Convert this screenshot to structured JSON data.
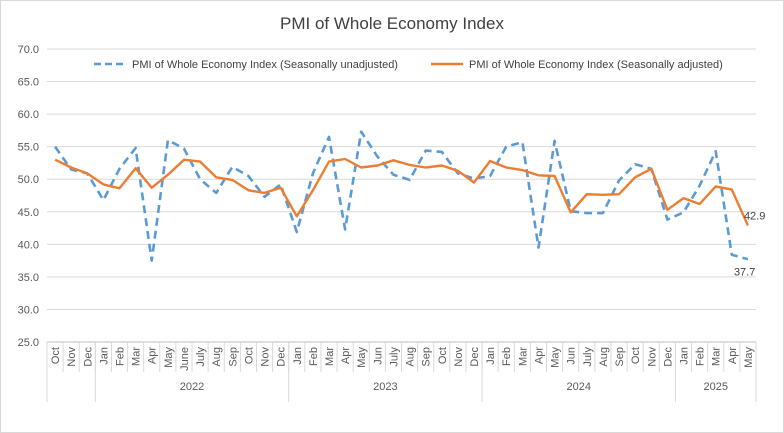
{
  "chart_data": {
    "type": "line",
    "title": "PMI of Whole Economy Index",
    "ylim": [
      25,
      70
    ],
    "yticks": [
      "70.0",
      "65.0",
      "60.0",
      "55.0",
      "50.0",
      "45.0",
      "40.0",
      "35.0",
      "30.0",
      "25.0"
    ],
    "ytick_values": [
      70,
      65,
      60,
      55,
      50,
      45,
      40,
      35,
      30,
      25
    ],
    "grid": true,
    "legend_position": "top",
    "categories": [
      "Oct",
      "Nov",
      "Dec",
      "Jan",
      "Feb",
      "Mar",
      "Apr",
      "May",
      "June",
      "July",
      "Aug",
      "Sep",
      "Oct",
      "Nov",
      "Dec",
      "Jan",
      "Feb",
      "Mar",
      "Apr",
      "May",
      "Jun",
      "July",
      "Aug",
      "Sep",
      "Oct",
      "Nov",
      "Dec",
      "Jan",
      "Feb",
      "Mar",
      "Apr",
      "May",
      "Jun",
      "July",
      "Aug",
      "Sep",
      "Oct",
      "Nov",
      "Dec",
      "Jan",
      "Feb",
      "Mar",
      "Apr",
      "May"
    ],
    "year_groups": [
      {
        "label": "",
        "start": 0,
        "end": 2
      },
      {
        "label": "2022",
        "start": 3,
        "end": 14
      },
      {
        "label": "2023",
        "start": 15,
        "end": 26
      },
      {
        "label": "2024",
        "start": 27,
        "end": 38
      },
      {
        "label": "2025",
        "start": 39,
        "end": 43
      }
    ],
    "series": [
      {
        "name": "PMI of Whole Economy Index (Seasonally unadjusted)",
        "color": "#5b9bd5",
        "dashed": true,
        "values": [
          55.0,
          51.5,
          50.9,
          46.8,
          51.6,
          54.8,
          37.5,
          56.0,
          54.7,
          50.0,
          47.9,
          51.9,
          50.5,
          47.3,
          49.2,
          41.9,
          50.9,
          56.5,
          42.3,
          57.3,
          53.5,
          50.7,
          49.9,
          54.4,
          54.2,
          50.9,
          50.1,
          50.5,
          55.0,
          55.7,
          39.5,
          55.9,
          45.1,
          44.8,
          44.8,
          49.8,
          52.3,
          51.6,
          43.8,
          44.9,
          49.0,
          54.3,
          38.4,
          37.7
        ]
      },
      {
        "name": "PMI of Whole Economy Index (Seasonally adjusted)",
        "color": "#ed7d31",
        "dashed": false,
        "values": [
          53.0,
          51.8,
          50.9,
          49.2,
          48.6,
          51.7,
          48.7,
          50.7,
          53.0,
          52.7,
          50.3,
          49.9,
          48.3,
          47.9,
          48.7,
          44.3,
          48.3,
          52.7,
          53.1,
          51.8,
          52.1,
          52.9,
          52.2,
          51.8,
          52.1,
          51.3,
          49.5,
          52.8,
          51.8,
          51.4,
          50.6,
          50.5,
          44.9,
          47.7,
          47.6,
          47.7,
          50.3,
          51.6,
          45.3,
          47.1,
          46.2,
          48.9,
          48.4,
          42.9
        ]
      }
    ],
    "end_labels": [
      "37.7",
      "42.9"
    ]
  }
}
